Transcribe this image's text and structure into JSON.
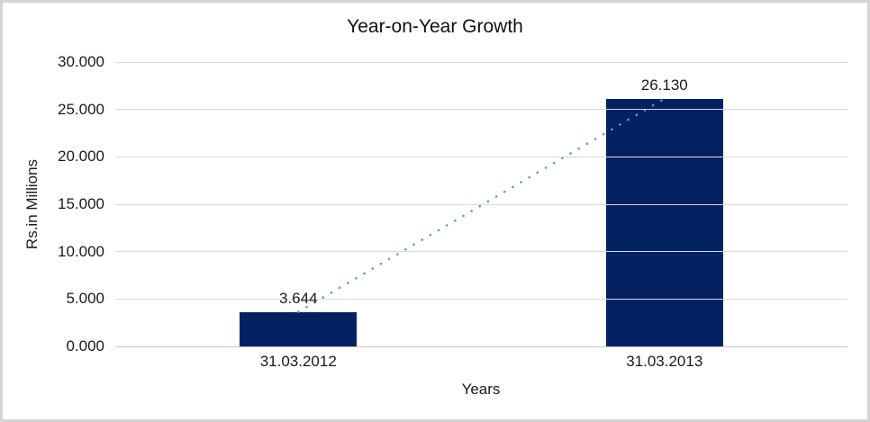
{
  "chart": {
    "title": "Year-on-Year Growth",
    "y_axis_title": "Rs.in Millions",
    "x_axis_title": "Years"
  },
  "chart_data": {
    "type": "bar",
    "title": "Year-on-Year Growth",
    "xlabel": "Years",
    "ylabel": "Rs.in Millions",
    "categories": [
      "31.03.2012",
      "31.03.2013"
    ],
    "values": [
      3.644,
      26.13
    ],
    "value_labels": [
      "3.644",
      "26.130"
    ],
    "ylim": [
      0,
      30
    ],
    "ytick_step": 5,
    "ytick_labels": [
      "0.000",
      "5.000",
      "10.000",
      "15.000",
      "20.000",
      "25.000",
      "30.000"
    ],
    "grid": true,
    "legend": false,
    "bar_color": "#042261",
    "gridline_color": "#d9d9d9",
    "axis_line_color": "#c7c7c7",
    "trendline": {
      "style": "dotted",
      "color": "#5b9bd5",
      "from": "31.03.2012",
      "to": "31.03.2013"
    }
  }
}
